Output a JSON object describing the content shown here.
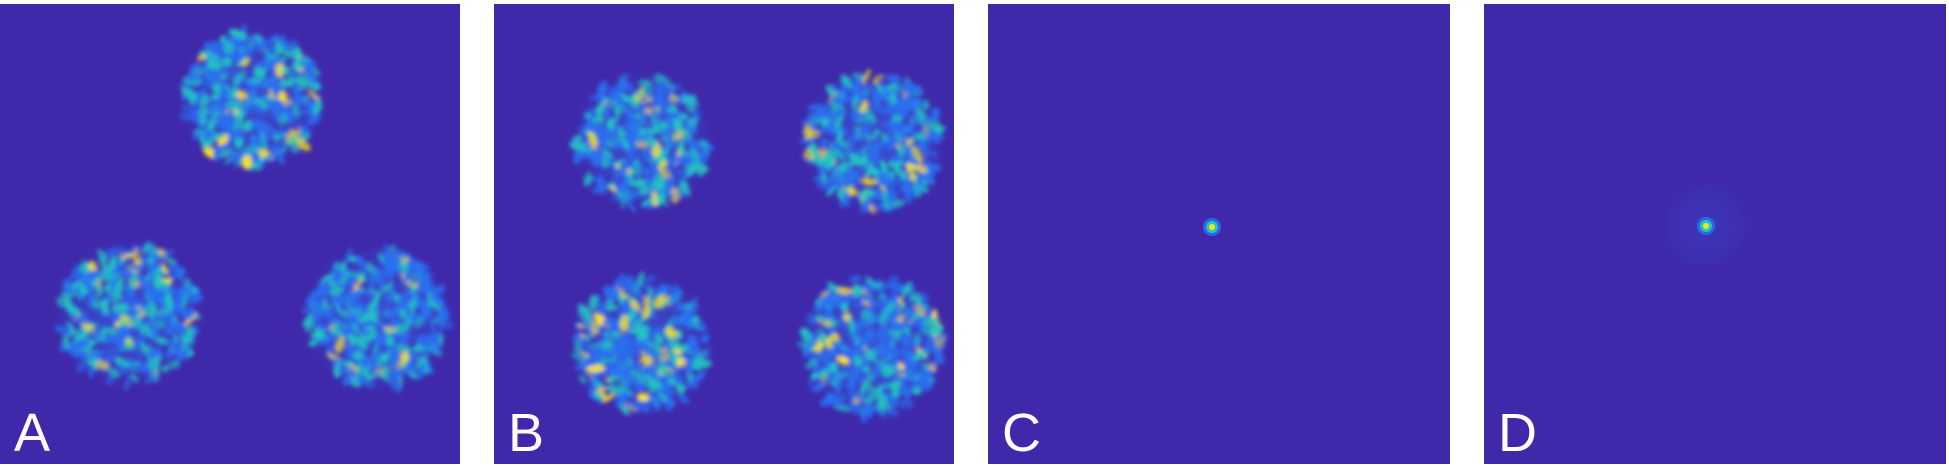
{
  "panels": [
    {
      "label": "A",
      "beams": 3
    },
    {
      "label": "B",
      "beams": 4
    },
    {
      "label": "C",
      "beams": 1
    },
    {
      "label": "D",
      "beams": 1
    }
  ],
  "colors": {
    "background": "#3f28aa",
    "speckle_low": "#2a6ef0",
    "speckle_mid": "#23c6c0",
    "speckle_high": "#ffe600"
  }
}
